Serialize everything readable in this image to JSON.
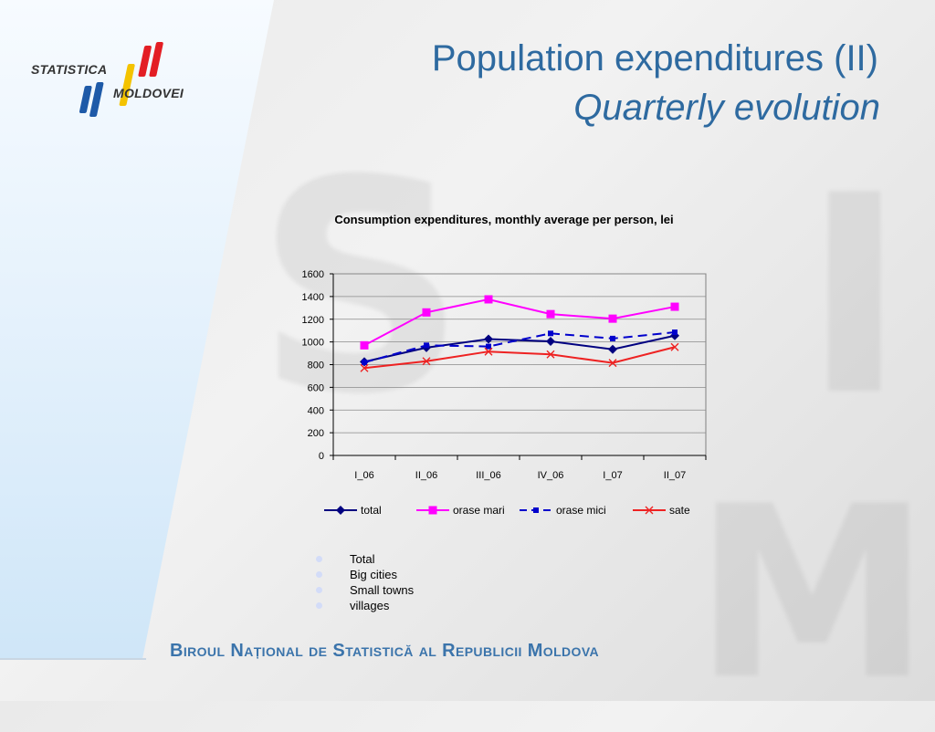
{
  "header": {
    "logo_top": "STATISTICA",
    "logo_bottom": "MOLDOVEI",
    "title_line1": "Population expenditures (II)",
    "title_line2": "Quarterly evolution"
  },
  "chart_data": {
    "type": "line",
    "title": "Consumption expenditures, monthly average per person, lei",
    "categories": [
      "I_06",
      "II_06",
      "III_06",
      "IV_06",
      "I_07",
      "II_07"
    ],
    "ylim": [
      0,
      1600
    ],
    "yticks": [
      0,
      200,
      400,
      600,
      800,
      1000,
      1200,
      1400,
      1600
    ],
    "grid": true,
    "legend_position": "bottom",
    "series": [
      {
        "name": "total",
        "color": "#000080",
        "marker": "diamond",
        "dash": "solid",
        "values": [
          825,
          950,
          1025,
          1005,
          935,
          1055
        ]
      },
      {
        "name": "orase mari",
        "color": "#ff00ff",
        "marker": "square",
        "dash": "solid",
        "values": [
          970,
          1260,
          1375,
          1245,
          1205,
          1310
        ]
      },
      {
        "name": "orase mici",
        "color": "#0000cc",
        "marker": "small-square",
        "dash": "dashed",
        "values": [
          820,
          970,
          960,
          1075,
          1030,
          1085
        ]
      },
      {
        "name": "sate",
        "color": "#ee2222",
        "marker": "x",
        "dash": "solid",
        "values": [
          770,
          830,
          915,
          890,
          815,
          955
        ]
      }
    ]
  },
  "bullets": [
    "Total",
    "Big cities",
    "Small towns",
    "villages"
  ],
  "footer": "Biroul Național de Statistică al Republicii Moldova"
}
